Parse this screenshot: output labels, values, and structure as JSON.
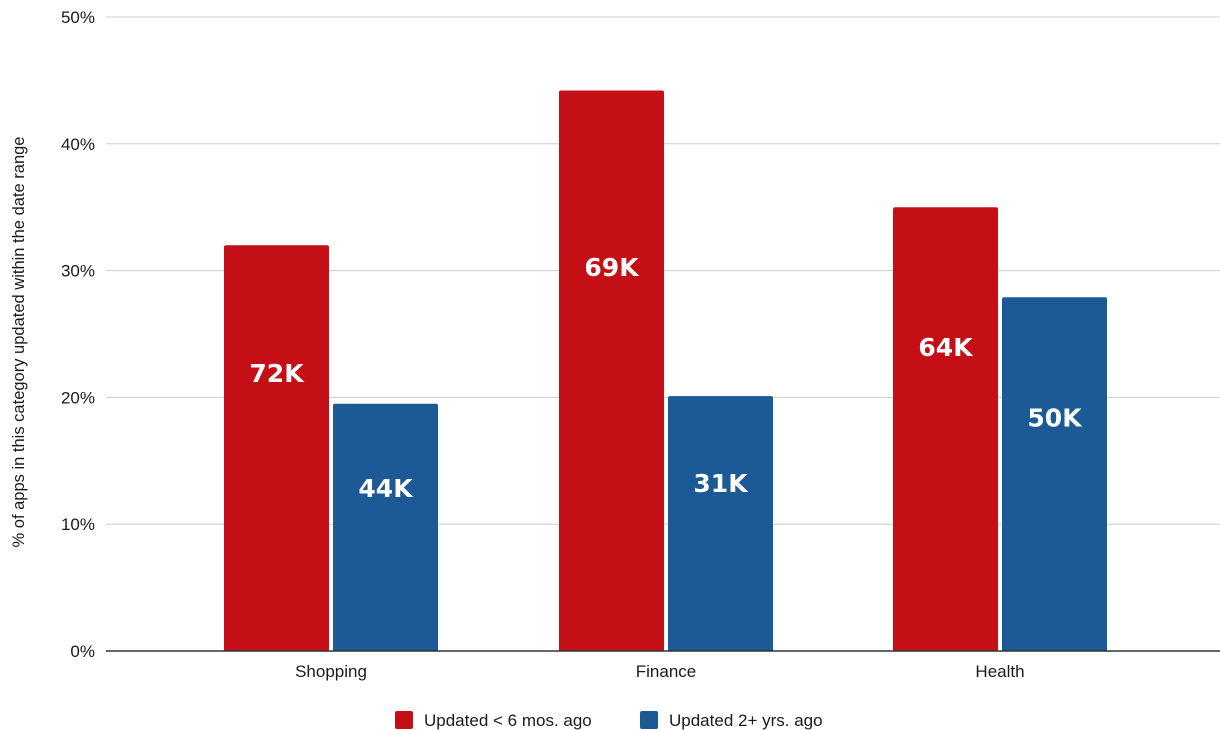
{
  "chart_data": {
    "type": "bar",
    "title": "",
    "xlabel": "",
    "ylabel": "% of apps in this category updated within the date range",
    "ylim": [
      0,
      50
    ],
    "yticks": [
      "0%",
      "10%",
      "20%",
      "30%",
      "40%",
      "50%"
    ],
    "ytick_values": [
      0,
      10,
      20,
      30,
      40,
      50
    ],
    "grid": true,
    "legend_position": "bottom",
    "categories": [
      "Shopping",
      "Finance",
      "Health"
    ],
    "series": [
      {
        "name": "Updated < 6 mos. ago",
        "color": "#c40f16",
        "values": [
          32,
          44.2,
          35
        ],
        "labels": [
          "72K",
          "69K",
          "64K"
        ]
      },
      {
        "name": "Updated 2+ yrs. ago",
        "color": "#1b5a94",
        "values": [
          19.5,
          20.1,
          27.9
        ],
        "labels": [
          "44K",
          "31K",
          "50K"
        ]
      }
    ],
    "colors": {
      "grid": "#cccccc",
      "axis": "#333333"
    }
  }
}
